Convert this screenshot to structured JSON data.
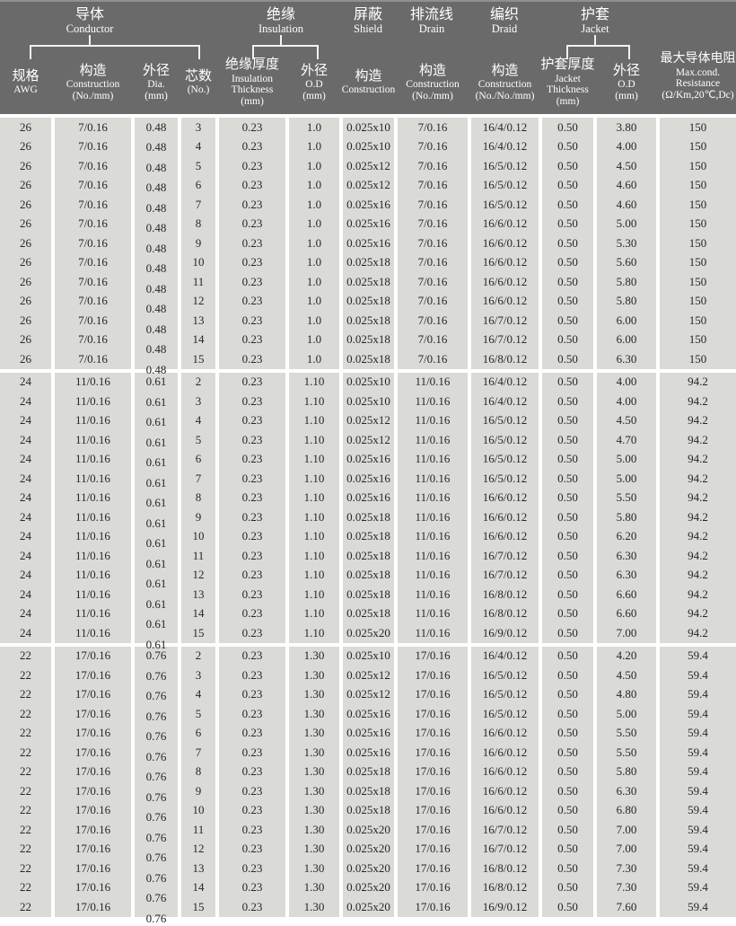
{
  "colors": {
    "header_bg": "#6a6a6a",
    "header_text": "#ffffff",
    "cell_bg": "#dadad7",
    "cell_text": "#262626",
    "gutter": "#ffffff",
    "top_edge": "#8f8f8f"
  },
  "header": {
    "groups": [
      {
        "id": "conductor",
        "zh": "导体",
        "en": "Conductor"
      },
      {
        "id": "insulation",
        "zh": "绝缘",
        "en": "Insulation"
      },
      {
        "id": "shield",
        "zh": "屏蔽",
        "en": "Shield"
      },
      {
        "id": "drain",
        "zh": "排流线",
        "en": "Drain"
      },
      {
        "id": "braid",
        "zh": "编织",
        "en": "Draid"
      },
      {
        "id": "jacket",
        "zh": "护套",
        "en": "Jacket"
      }
    ],
    "columns": [
      {
        "id": "awg",
        "zh": "规格",
        "lines": [
          "AWG"
        ]
      },
      {
        "id": "conductor-construction",
        "zh": "构造",
        "lines": [
          "Construction",
          "(No./mm)"
        ]
      },
      {
        "id": "conductor-dia",
        "zh": "外径",
        "lines": [
          "Dia.",
          "(mm)"
        ]
      },
      {
        "id": "cores",
        "zh": "芯数",
        "lines": [
          "(No.)"
        ]
      },
      {
        "id": "insulation-thickness",
        "zh": "绝缘厚度",
        "lines": [
          "Insulation",
          "Thickness",
          "(mm)"
        ]
      },
      {
        "id": "insulation-od",
        "zh": "外径",
        "lines": [
          "O.D",
          "(mm)"
        ]
      },
      {
        "id": "shield-construction",
        "zh": "构造",
        "lines": [
          "Construction"
        ]
      },
      {
        "id": "drain-construction",
        "zh": "构造",
        "lines": [
          "Construction",
          "(No./mm)"
        ]
      },
      {
        "id": "braid-construction",
        "zh": "构造",
        "lines": [
          "Construction",
          "(No./No./mm)"
        ]
      },
      {
        "id": "jacket-thickness",
        "zh": "护套厚度",
        "lines": [
          "Jacket",
          "Thickness",
          "(mm)"
        ]
      },
      {
        "id": "jacket-od",
        "zh": "外径",
        "lines": [
          "O.D",
          "(mm)"
        ]
      },
      {
        "id": "resistance",
        "zh": "最大导体电阻",
        "lines": [
          "Max.cond.",
          "Resistance",
          "(Ω/Km,20℃,Dc)"
        ]
      }
    ]
  },
  "groups": [
    {
      "awg": "26",
      "conductor_construction": "7/0.16",
      "dia": "0.48",
      "insulation_thickness": "0.23",
      "insulation_od": "1.0",
      "drain_construction": "7/0.16",
      "jacket_thickness": "0.50",
      "resistance": "150",
      "rows": [
        {
          "cores": "3",
          "shield": "0.025x10",
          "braid": "16/4/0.12",
          "od": "3.80"
        },
        {
          "cores": "4",
          "shield": "0.025x10",
          "braid": "16/4/0.12",
          "od": "4.00"
        },
        {
          "cores": "5",
          "shield": "0.025x12",
          "braid": "16/5/0.12",
          "od": "4.50"
        },
        {
          "cores": "6",
          "shield": "0.025x12",
          "braid": "16/5/0.12",
          "od": "4.60"
        },
        {
          "cores": "7",
          "shield": "0.025x16",
          "braid": "16/5/0.12",
          "od": "4.60"
        },
        {
          "cores": "8",
          "shield": "0.025x16",
          "braid": "16/6/0.12",
          "od": "5.00"
        },
        {
          "cores": "9",
          "shield": "0.025x16",
          "braid": "16/6/0.12",
          "od": "5.30"
        },
        {
          "cores": "10",
          "shield": "0.025x18",
          "braid": "16/6/0.12",
          "od": "5.60"
        },
        {
          "cores": "11",
          "shield": "0.025x18",
          "braid": "16/6/0.12",
          "od": "5.80"
        },
        {
          "cores": "12",
          "shield": "0.025x18",
          "braid": "16/6/0.12",
          "od": "5.80"
        },
        {
          "cores": "13",
          "shield": "0.025x18",
          "braid": "16/7/0.12",
          "od": "6.00"
        },
        {
          "cores": "14",
          "shield": "0.025x18",
          "braid": "16/7/0.12",
          "od": "6.00"
        },
        {
          "cores": "15",
          "shield": "0.025x18",
          "braid": "16/8/0.12",
          "od": "6.30"
        }
      ]
    },
    {
      "awg": "24",
      "conductor_construction": "11/0.16",
      "dia": "0.61",
      "insulation_thickness": "0.23",
      "insulation_od": "1.10",
      "drain_construction": "11/0.16",
      "jacket_thickness": "0.50",
      "resistance": "94.2",
      "rows": [
        {
          "cores": "2",
          "shield": "0.025x10",
          "braid": "16/4/0.12",
          "od": "4.00"
        },
        {
          "cores": "3",
          "shield": "0.025x10",
          "braid": "16/4/0.12",
          "od": "4.00"
        },
        {
          "cores": "4",
          "shield": "0.025x12",
          "braid": "16/5/0.12",
          "od": "4.50"
        },
        {
          "cores": "5",
          "shield": "0.025x12",
          "braid": "16/5/0.12",
          "od": "4.70"
        },
        {
          "cores": "6",
          "shield": "0.025x16",
          "braid": "16/5/0.12",
          "od": "5.00"
        },
        {
          "cores": "7",
          "shield": "0.025x16",
          "braid": "16/5/0.12",
          "od": "5.00"
        },
        {
          "cores": "8",
          "shield": "0.025x16",
          "braid": "16/6/0.12",
          "od": "5.50"
        },
        {
          "cores": "9",
          "shield": "0.025x18",
          "braid": "16/6/0.12",
          "od": "5.80"
        },
        {
          "cores": "10",
          "shield": "0.025x18",
          "braid": "16/6/0.12",
          "od": "6.20"
        },
        {
          "cores": "11",
          "shield": "0.025x18",
          "braid": "16/7/0.12",
          "od": "6.30"
        },
        {
          "cores": "12",
          "shield": "0.025x18",
          "braid": "16/7/0.12",
          "od": "6.30"
        },
        {
          "cores": "13",
          "shield": "0.025x18",
          "braid": "16/8/0.12",
          "od": "6.60"
        },
        {
          "cores": "14",
          "shield": "0.025x18",
          "braid": "16/8/0.12",
          "od": "6.60"
        },
        {
          "cores": "15",
          "shield": "0.025x20",
          "braid": "16/9/0.12",
          "od": "7.00"
        }
      ]
    },
    {
      "awg": "22",
      "conductor_construction": "17/0.16",
      "dia": "0.76",
      "insulation_thickness": "0.23",
      "insulation_od": "1.30",
      "drain_construction": "17/0.16",
      "jacket_thickness": "0.50",
      "resistance": "59.4",
      "rows": [
        {
          "cores": "2",
          "shield": "0.025x10",
          "braid": "16/4/0.12",
          "od": "4.20"
        },
        {
          "cores": "3",
          "shield": "0.025x12",
          "braid": "16/5/0.12",
          "od": "4.50"
        },
        {
          "cores": "4",
          "shield": "0.025x12",
          "braid": "16/5/0.12",
          "od": "4.80"
        },
        {
          "cores": "5",
          "shield": "0.025x16",
          "braid": "16/5/0.12",
          "od": "5.00"
        },
        {
          "cores": "6",
          "shield": "0.025x16",
          "braid": "16/6/0.12",
          "od": "5.50"
        },
        {
          "cores": "7",
          "shield": "0.025x16",
          "braid": "16/6/0.12",
          "od": "5.50"
        },
        {
          "cores": "8",
          "shield": "0.025x18",
          "braid": "16/6/0.12",
          "od": "5.80"
        },
        {
          "cores": "9",
          "shield": "0.025x18",
          "braid": "16/6/0.12",
          "od": "6.30"
        },
        {
          "cores": "10",
          "shield": "0.025x18",
          "braid": "16/6/0.12",
          "od": "6.80"
        },
        {
          "cores": "11",
          "shield": "0.025x20",
          "braid": "16/7/0.12",
          "od": "7.00"
        },
        {
          "cores": "12",
          "shield": "0.025x20",
          "braid": "16/7/0.12",
          "od": "7.00"
        },
        {
          "cores": "13",
          "shield": "0.025x20",
          "braid": "16/8/0.12",
          "od": "7.30"
        },
        {
          "cores": "14",
          "shield": "0.025x20",
          "braid": "16/8/0.12",
          "od": "7.30"
        },
        {
          "cores": "15",
          "shield": "0.025x20",
          "braid": "16/9/0.12",
          "od": "7.60"
        }
      ]
    }
  ]
}
